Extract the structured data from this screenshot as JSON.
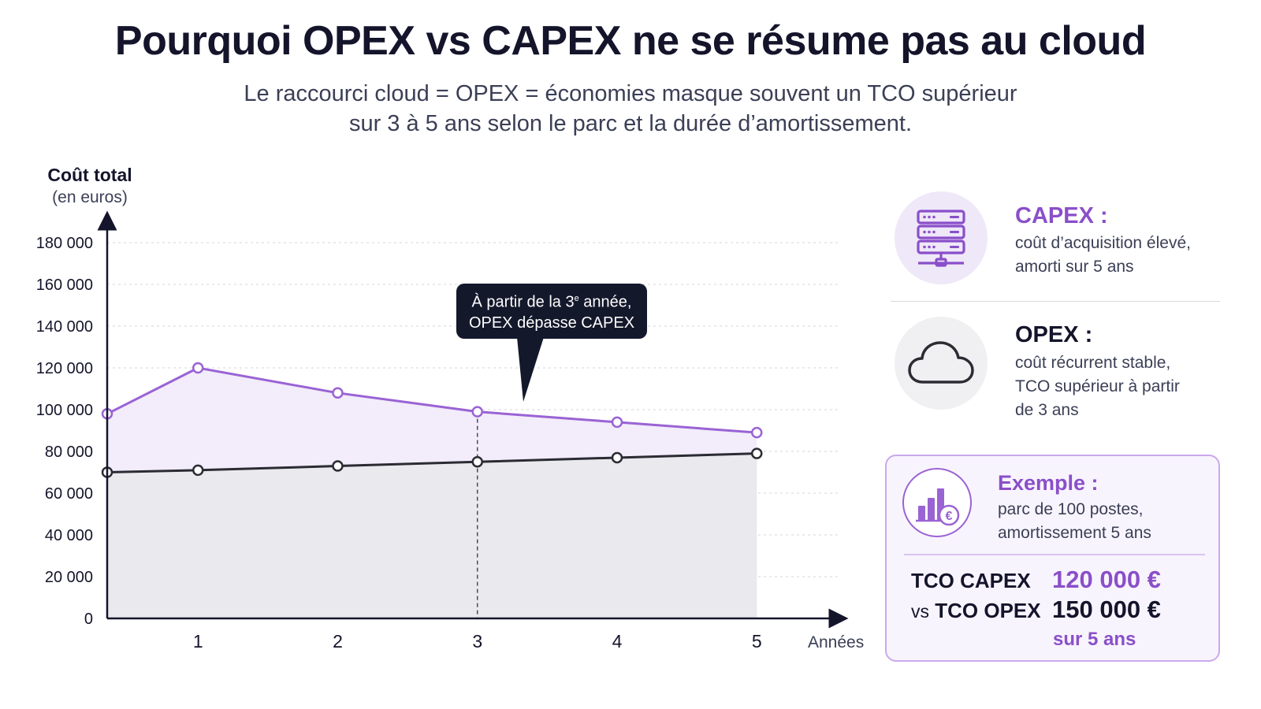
{
  "header": {
    "title": "Pourquoi OPEX vs CAPEX ne se résume pas au cloud",
    "subtitle_line1": "Le raccourci cloud = OPEX = économies masque souvent un TCO supérieur",
    "subtitle_line2": "sur 3 à 5 ans selon le parc et la durée d’amortissement."
  },
  "chart_data": {
    "type": "area",
    "ylabel": "Coût total",
    "ylabel_unit": "(en euros)",
    "xlabel": "Années",
    "ylim": [
      0,
      180000
    ],
    "yticks": [
      0,
      20000,
      40000,
      60000,
      80000,
      100000,
      120000,
      140000,
      160000,
      180000
    ],
    "ytick_labels": [
      "0",
      "20 000",
      "40 000",
      "60 000",
      "80 000",
      "100 000",
      "120 000",
      "140 000",
      "160 000",
      "180 000"
    ],
    "xlim": [
      0.35,
      5.45
    ],
    "x_ticks": [
      1,
      2,
      3,
      4,
      5
    ],
    "grid": true,
    "series": [
      {
        "x": [
          0.35,
          1,
          2,
          3,
          4,
          5
        ],
        "values": [
          98000,
          120000,
          108000,
          99000,
          94000,
          89000
        ],
        "color": "#9a63d4",
        "fill": "#f2ecfb"
      },
      {
        "x": [
          0.35,
          1,
          2,
          3,
          4,
          5
        ],
        "values": [
          70000,
          71000,
          73000,
          75000,
          77000,
          79000
        ],
        "color": "#2b2b33",
        "fill": "#e9e9ee"
      }
    ],
    "marker_line_x": 3,
    "annotation": {
      "line1_prefix": "À partir de la 3",
      "line1_sup": "e",
      "line1_suffix": " année,",
      "line2": "OPEX dépasse CAPEX"
    }
  },
  "panel": {
    "capex": {
      "title": "CAPEX :",
      "line1": "coût d’acquisition élevé,",
      "line2": "amorti sur 5 ans",
      "icon": "server-icon"
    },
    "opex": {
      "title": "OPEX :",
      "line1": "coût récurrent stable,",
      "line2": "TCO supérieur à partir",
      "line3": "de 3 ans",
      "icon": "cloud-icon"
    },
    "example": {
      "title": "Exemple :",
      "line1": "parc de 100 postes,",
      "line2": "amortissement 5 ans",
      "icon": "bar-chart-euro-icon",
      "capex_label": "TCO CAPEX",
      "vs": "vs",
      "opex_label": "TCO OPEX",
      "capex_value": "120 000 €",
      "opex_value": "150 000 €",
      "period": "sur 5 ans"
    }
  }
}
